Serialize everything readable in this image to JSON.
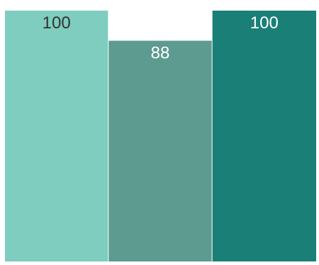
{
  "chart_data": {
    "type": "bar",
    "categories": [
      "",
      "",
      ""
    ],
    "values": [
      100,
      88,
      100
    ],
    "data_labels": [
      "100",
      "88",
      "100"
    ],
    "ylim": [
      0,
      100
    ],
    "grid": false,
    "bar_colors": [
      "#7ecdbe",
      "#5d9a8f",
      "#197f77"
    ],
    "label_colors": [
      "#333333",
      "#ffffff",
      "#ffffff"
    ]
  }
}
